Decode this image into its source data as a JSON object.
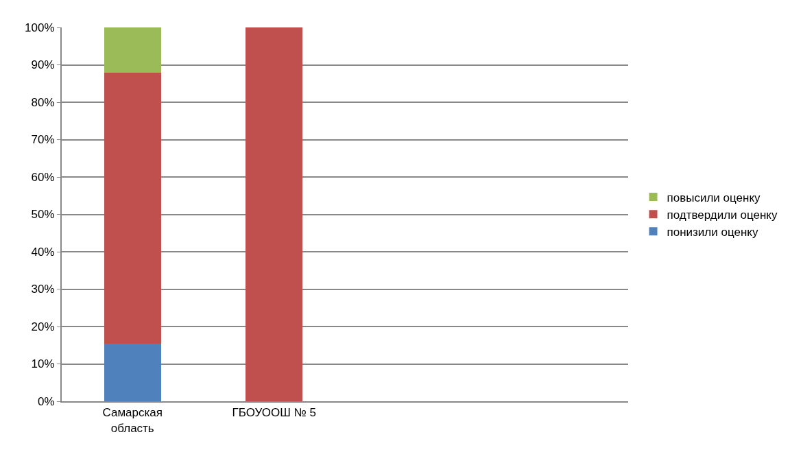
{
  "chart_data": {
    "type": "bar",
    "stacked": true,
    "categories": [
      "Самарская область",
      "ГБОУООШ № 5",
      null,
      null
    ],
    "series": [
      {
        "name": "понизили оценку",
        "color": "#4f81bd",
        "values": [
          15.5,
          0,
          null,
          null
        ]
      },
      {
        "name": "подтвердили оценку",
        "color": "#c0504d",
        "values": [
          72.3,
          100,
          null,
          null
        ]
      },
      {
        "name": "повысили оценку",
        "color": "#9bbb59",
        "values": [
          12.2,
          0,
          null,
          null
        ]
      }
    ],
    "ylim": [
      0,
      100
    ],
    "yticks": [
      {
        "value": 0,
        "label": "0%"
      },
      {
        "value": 10,
        "label": "10%"
      },
      {
        "value": 20,
        "label": "20%"
      },
      {
        "value": 30,
        "label": "30%"
      },
      {
        "value": 40,
        "label": "40%"
      },
      {
        "value": 50,
        "label": "50%"
      },
      {
        "value": 60,
        "label": "60%"
      },
      {
        "value": 70,
        "label": "70%"
      },
      {
        "value": 80,
        "label": "80%"
      },
      {
        "value": 90,
        "label": "90%"
      },
      {
        "value": 100,
        "label": "100%"
      }
    ],
    "grid": "y",
    "legend": "right"
  }
}
